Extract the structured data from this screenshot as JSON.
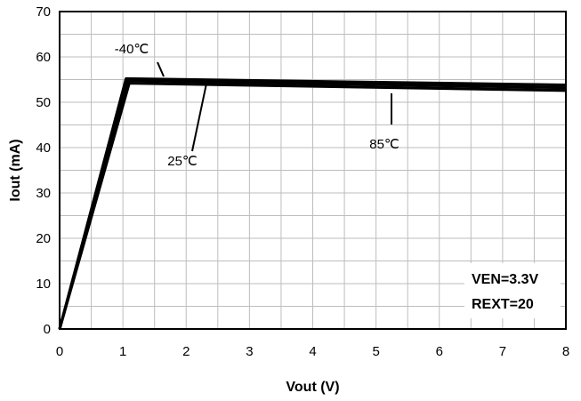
{
  "chart_data": {
    "type": "line",
    "xlabel": "Vout (V)",
    "ylabel": "Iout (mA)",
    "xlim": [
      0,
      8
    ],
    "ylim": [
      0,
      70
    ],
    "x_ticks": [
      0,
      1,
      2,
      3,
      4,
      5,
      6,
      7,
      8
    ],
    "y_ticks": [
      0,
      10,
      20,
      30,
      40,
      50,
      60,
      70
    ],
    "grid": true,
    "series": [
      {
        "name": "-40℃",
        "x": [
          0,
          1.05,
          8
        ],
        "y": [
          0,
          55.2,
          53.8
        ]
      },
      {
        "name": "25℃",
        "x": [
          0,
          1.08,
          8
        ],
        "y": [
          0,
          54.8,
          53.2
        ]
      },
      {
        "name": "85℃",
        "x": [
          0,
          1.1,
          8
        ],
        "y": [
          0,
          54.2,
          52.6
        ]
      }
    ],
    "annotations": [
      {
        "text": "-40℃",
        "target_x": 1.55,
        "target_y": 55.2
      },
      {
        "text": "25℃",
        "target_x": 2.3,
        "target_y": 54.8
      },
      {
        "text": "85℃",
        "target_x": 5.2,
        "target_y": 53.4
      }
    ],
    "conditions": [
      "VEN=3.3V",
      "REXT=20"
    ]
  }
}
